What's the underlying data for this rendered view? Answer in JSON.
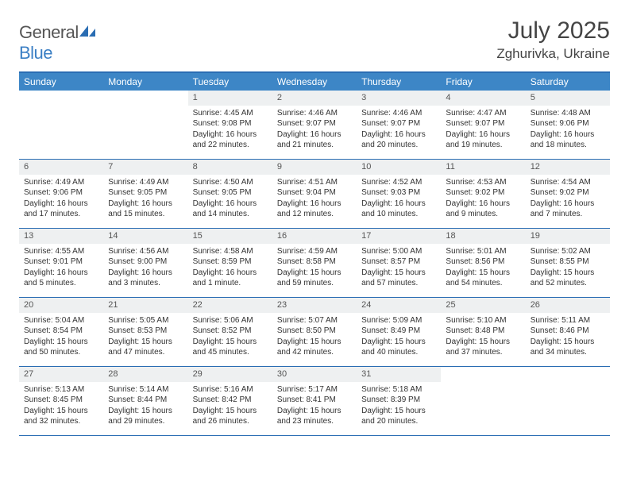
{
  "logo": {
    "text1": "General",
    "text2": "Blue"
  },
  "header": {
    "title": "July 2025",
    "location": "Zghurivka, Ukraine"
  },
  "colors": {
    "header_bar": "#3d86c6",
    "rule": "#2a6db3",
    "daynum_bg": "#eef0f1",
    "logo_blue": "#3b7fc4"
  },
  "dow": [
    "Sunday",
    "Monday",
    "Tuesday",
    "Wednesday",
    "Thursday",
    "Friday",
    "Saturday"
  ],
  "weeks": [
    [
      {
        "n": "",
        "l1": "",
        "l2": "",
        "l3": "",
        "l4": ""
      },
      {
        "n": "",
        "l1": "",
        "l2": "",
        "l3": "",
        "l4": ""
      },
      {
        "n": "1",
        "l1": "Sunrise: 4:45 AM",
        "l2": "Sunset: 9:08 PM",
        "l3": "Daylight: 16 hours",
        "l4": "and 22 minutes."
      },
      {
        "n": "2",
        "l1": "Sunrise: 4:46 AM",
        "l2": "Sunset: 9:07 PM",
        "l3": "Daylight: 16 hours",
        "l4": "and 21 minutes."
      },
      {
        "n": "3",
        "l1": "Sunrise: 4:46 AM",
        "l2": "Sunset: 9:07 PM",
        "l3": "Daylight: 16 hours",
        "l4": "and 20 minutes."
      },
      {
        "n": "4",
        "l1": "Sunrise: 4:47 AM",
        "l2": "Sunset: 9:07 PM",
        "l3": "Daylight: 16 hours",
        "l4": "and 19 minutes."
      },
      {
        "n": "5",
        "l1": "Sunrise: 4:48 AM",
        "l2": "Sunset: 9:06 PM",
        "l3": "Daylight: 16 hours",
        "l4": "and 18 minutes."
      }
    ],
    [
      {
        "n": "6",
        "l1": "Sunrise: 4:49 AM",
        "l2": "Sunset: 9:06 PM",
        "l3": "Daylight: 16 hours",
        "l4": "and 17 minutes."
      },
      {
        "n": "7",
        "l1": "Sunrise: 4:49 AM",
        "l2": "Sunset: 9:05 PM",
        "l3": "Daylight: 16 hours",
        "l4": "and 15 minutes."
      },
      {
        "n": "8",
        "l1": "Sunrise: 4:50 AM",
        "l2": "Sunset: 9:05 PM",
        "l3": "Daylight: 16 hours",
        "l4": "and 14 minutes."
      },
      {
        "n": "9",
        "l1": "Sunrise: 4:51 AM",
        "l2": "Sunset: 9:04 PM",
        "l3": "Daylight: 16 hours",
        "l4": "and 12 minutes."
      },
      {
        "n": "10",
        "l1": "Sunrise: 4:52 AM",
        "l2": "Sunset: 9:03 PM",
        "l3": "Daylight: 16 hours",
        "l4": "and 10 minutes."
      },
      {
        "n": "11",
        "l1": "Sunrise: 4:53 AM",
        "l2": "Sunset: 9:02 PM",
        "l3": "Daylight: 16 hours",
        "l4": "and 9 minutes."
      },
      {
        "n": "12",
        "l1": "Sunrise: 4:54 AM",
        "l2": "Sunset: 9:02 PM",
        "l3": "Daylight: 16 hours",
        "l4": "and 7 minutes."
      }
    ],
    [
      {
        "n": "13",
        "l1": "Sunrise: 4:55 AM",
        "l2": "Sunset: 9:01 PM",
        "l3": "Daylight: 16 hours",
        "l4": "and 5 minutes."
      },
      {
        "n": "14",
        "l1": "Sunrise: 4:56 AM",
        "l2": "Sunset: 9:00 PM",
        "l3": "Daylight: 16 hours",
        "l4": "and 3 minutes."
      },
      {
        "n": "15",
        "l1": "Sunrise: 4:58 AM",
        "l2": "Sunset: 8:59 PM",
        "l3": "Daylight: 16 hours",
        "l4": "and 1 minute."
      },
      {
        "n": "16",
        "l1": "Sunrise: 4:59 AM",
        "l2": "Sunset: 8:58 PM",
        "l3": "Daylight: 15 hours",
        "l4": "and 59 minutes."
      },
      {
        "n": "17",
        "l1": "Sunrise: 5:00 AM",
        "l2": "Sunset: 8:57 PM",
        "l3": "Daylight: 15 hours",
        "l4": "and 57 minutes."
      },
      {
        "n": "18",
        "l1": "Sunrise: 5:01 AM",
        "l2": "Sunset: 8:56 PM",
        "l3": "Daylight: 15 hours",
        "l4": "and 54 minutes."
      },
      {
        "n": "19",
        "l1": "Sunrise: 5:02 AM",
        "l2": "Sunset: 8:55 PM",
        "l3": "Daylight: 15 hours",
        "l4": "and 52 minutes."
      }
    ],
    [
      {
        "n": "20",
        "l1": "Sunrise: 5:04 AM",
        "l2": "Sunset: 8:54 PM",
        "l3": "Daylight: 15 hours",
        "l4": "and 50 minutes."
      },
      {
        "n": "21",
        "l1": "Sunrise: 5:05 AM",
        "l2": "Sunset: 8:53 PM",
        "l3": "Daylight: 15 hours",
        "l4": "and 47 minutes."
      },
      {
        "n": "22",
        "l1": "Sunrise: 5:06 AM",
        "l2": "Sunset: 8:52 PM",
        "l3": "Daylight: 15 hours",
        "l4": "and 45 minutes."
      },
      {
        "n": "23",
        "l1": "Sunrise: 5:07 AM",
        "l2": "Sunset: 8:50 PM",
        "l3": "Daylight: 15 hours",
        "l4": "and 42 minutes."
      },
      {
        "n": "24",
        "l1": "Sunrise: 5:09 AM",
        "l2": "Sunset: 8:49 PM",
        "l3": "Daylight: 15 hours",
        "l4": "and 40 minutes."
      },
      {
        "n": "25",
        "l1": "Sunrise: 5:10 AM",
        "l2": "Sunset: 8:48 PM",
        "l3": "Daylight: 15 hours",
        "l4": "and 37 minutes."
      },
      {
        "n": "26",
        "l1": "Sunrise: 5:11 AM",
        "l2": "Sunset: 8:46 PM",
        "l3": "Daylight: 15 hours",
        "l4": "and 34 minutes."
      }
    ],
    [
      {
        "n": "27",
        "l1": "Sunrise: 5:13 AM",
        "l2": "Sunset: 8:45 PM",
        "l3": "Daylight: 15 hours",
        "l4": "and 32 minutes."
      },
      {
        "n": "28",
        "l1": "Sunrise: 5:14 AM",
        "l2": "Sunset: 8:44 PM",
        "l3": "Daylight: 15 hours",
        "l4": "and 29 minutes."
      },
      {
        "n": "29",
        "l1": "Sunrise: 5:16 AM",
        "l2": "Sunset: 8:42 PM",
        "l3": "Daylight: 15 hours",
        "l4": "and 26 minutes."
      },
      {
        "n": "30",
        "l1": "Sunrise: 5:17 AM",
        "l2": "Sunset: 8:41 PM",
        "l3": "Daylight: 15 hours",
        "l4": "and 23 minutes."
      },
      {
        "n": "31",
        "l1": "Sunrise: 5:18 AM",
        "l2": "Sunset: 8:39 PM",
        "l3": "Daylight: 15 hours",
        "l4": "and 20 minutes."
      },
      {
        "n": "",
        "l1": "",
        "l2": "",
        "l3": "",
        "l4": ""
      },
      {
        "n": "",
        "l1": "",
        "l2": "",
        "l3": "",
        "l4": ""
      }
    ]
  ]
}
